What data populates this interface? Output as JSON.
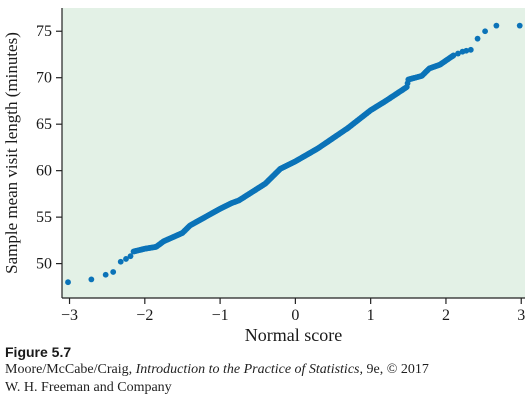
{
  "chart_data": {
    "type": "scatter",
    "title": "",
    "xlabel": "Normal score",
    "ylabel": "Sample mean visit length (minutes)",
    "xlim": [
      -3.1,
      3.05
    ],
    "ylim": [
      46.3,
      77.5
    ],
    "xticks": [
      -3,
      -2,
      -1,
      0,
      1,
      2,
      3
    ],
    "xtick_labels": [
      "−3",
      "−2",
      "−1",
      "0",
      "1",
      "2",
      "3"
    ],
    "yticks": [
      50,
      55,
      60,
      65,
      70,
      75
    ],
    "ytick_labels": [
      "50",
      "55",
      "60",
      "65",
      "70",
      "75"
    ],
    "grid": false,
    "plot_background": "#e3f1e6",
    "point_color": "#0b73b8",
    "tail_points": [
      {
        "x": -3.02,
        "y": 48.0
      },
      {
        "x": -2.71,
        "y": 48.3
      },
      {
        "x": -2.52,
        "y": 48.8
      },
      {
        "x": -2.42,
        "y": 49.1
      },
      {
        "x": -2.32,
        "y": 50.2
      },
      {
        "x": -2.25,
        "y": 50.5
      },
      {
        "x": -2.19,
        "y": 50.8
      },
      {
        "x": 2.16,
        "y": 72.6
      },
      {
        "x": 2.22,
        "y": 72.8
      },
      {
        "x": 2.27,
        "y": 72.9
      },
      {
        "x": 2.33,
        "y": 73.0
      },
      {
        "x": 2.42,
        "y": 74.2
      },
      {
        "x": 2.52,
        "y": 75.0
      },
      {
        "x": 2.67,
        "y": 75.6
      },
      {
        "x": 2.98,
        "y": 75.6
      }
    ],
    "curve_points": [
      {
        "x": -2.15,
        "y": 51.3
      },
      {
        "x": -2.0,
        "y": 51.6
      },
      {
        "x": -1.85,
        "y": 51.8
      },
      {
        "x": -1.75,
        "y": 52.4
      },
      {
        "x": -1.5,
        "y": 53.3
      },
      {
        "x": -1.4,
        "y": 54.1
      },
      {
        "x": -1.0,
        "y": 55.9
      },
      {
        "x": -0.85,
        "y": 56.5
      },
      {
        "x": -0.75,
        "y": 56.8
      },
      {
        "x": -0.4,
        "y": 58.6
      },
      {
        "x": -0.2,
        "y": 60.2
      },
      {
        "x": 0.0,
        "y": 61.0
      },
      {
        "x": 0.3,
        "y": 62.4
      },
      {
        "x": 0.7,
        "y": 64.6
      },
      {
        "x": 1.0,
        "y": 66.5
      },
      {
        "x": 1.2,
        "y": 67.5
      },
      {
        "x": 1.48,
        "y": 69.0
      },
      {
        "x": 1.5,
        "y": 69.8
      },
      {
        "x": 1.68,
        "y": 70.2
      },
      {
        "x": 1.78,
        "y": 71.0
      },
      {
        "x": 1.92,
        "y": 71.4
      },
      {
        "x": 2.1,
        "y": 72.4
      }
    ]
  },
  "caption": {
    "figure_label": "Figure 5.7",
    "citation_authors": "Moore/McCabe/Craig, ",
    "citation_title": "Introduction to the Practice of Statistics,",
    "citation_edition": " 9e, © 2017",
    "publisher": "W. H. Freeman and Company"
  }
}
